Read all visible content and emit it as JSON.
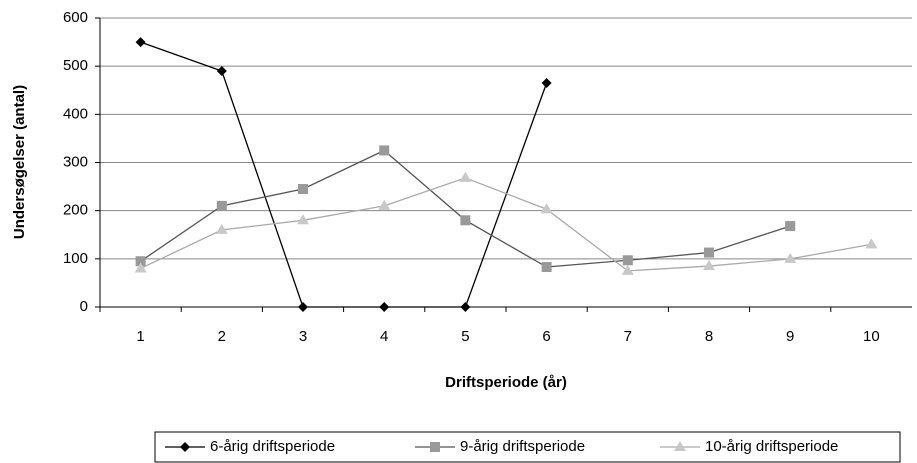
{
  "chart_data": {
    "type": "line",
    "x_label": "Driftsperiode (år)",
    "y_label": "Undersøgelser (antal)",
    "categories": [
      1,
      2,
      3,
      4,
      5,
      6,
      7,
      8,
      9,
      10
    ],
    "series": [
      {
        "name": "6-årig driftsperiode",
        "color": "#000000",
        "marker": "diamond",
        "values": [
          550,
          490,
          0,
          0,
          0,
          465,
          null,
          null,
          null,
          null
        ]
      },
      {
        "name": "9-årig driftsperiode",
        "color": "#555555",
        "marker": "square",
        "values": [
          95,
          210,
          245,
          325,
          180,
          83,
          97,
          113,
          168,
          null
        ]
      },
      {
        "name": "10-årig driftsperiode",
        "color": "#aaaaaa",
        "marker": "triangle",
        "values": [
          80,
          160,
          180,
          210,
          268,
          203,
          75,
          85,
          100,
          130
        ]
      }
    ],
    "ylim": [
      0,
      600
    ],
    "yticks": [
      0,
      100,
      200,
      300,
      400,
      500,
      600
    ],
    "grid": true,
    "legend": "bottom"
  }
}
